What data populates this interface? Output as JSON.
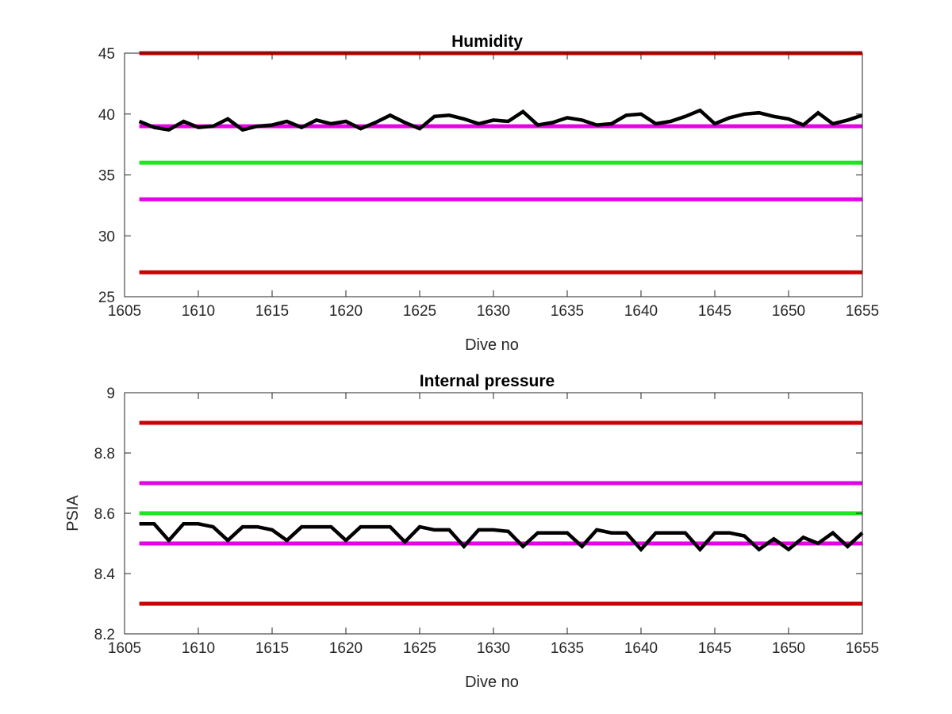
{
  "chart_data": [
    {
      "type": "line",
      "title": "Humidity",
      "xlabel": "Dive no",
      "ylabel": "",
      "xlim": [
        1605,
        1655
      ],
      "ylim": [
        25,
        45
      ],
      "xticks": [
        "1605",
        "1610",
        "1615",
        "1620",
        "1625",
        "1630",
        "1635",
        "1640",
        "1645",
        "1650",
        "1655"
      ],
      "yticks": [
        "25",
        "30",
        "35",
        "40",
        "45"
      ],
      "grid": false,
      "reference_lines": [
        {
          "y": 45,
          "color": "#cc0000"
        },
        {
          "y": 39,
          "color": "#e600e6"
        },
        {
          "y": 36,
          "color": "#1ee61e"
        },
        {
          "y": 33,
          "color": "#e600e6"
        },
        {
          "y": 27,
          "color": "#cc0000"
        }
      ],
      "series": [
        {
          "color": "#000000",
          "x": [
            1606,
            1607,
            1608,
            1609,
            1610,
            1611,
            1612,
            1613,
            1614,
            1615,
            1616,
            1617,
            1618,
            1619,
            1620,
            1621,
            1622,
            1623,
            1624,
            1625,
            1626,
            1627,
            1628,
            1629,
            1630,
            1631,
            1632,
            1633,
            1634,
            1635,
            1636,
            1637,
            1638,
            1639,
            1640,
            1641,
            1642,
            1643,
            1644,
            1645,
            1646,
            1647,
            1648,
            1649,
            1650,
            1651,
            1652,
            1653,
            1654,
            1655
          ],
          "y": [
            39.4,
            38.9,
            38.7,
            39.4,
            38.9,
            39.0,
            39.6,
            38.7,
            39.0,
            39.1,
            39.4,
            38.9,
            39.5,
            39.2,
            39.4,
            38.8,
            39.3,
            39.9,
            39.3,
            38.8,
            39.8,
            39.9,
            39.6,
            39.2,
            39.5,
            39.4,
            40.2,
            39.1,
            39.3,
            39.7,
            39.5,
            39.1,
            39.2,
            39.9,
            40.0,
            39.2,
            39.4,
            39.8,
            40.3,
            39.2,
            39.7,
            40.0,
            40.1,
            39.8,
            39.6,
            39.1,
            40.1,
            39.2,
            39.5,
            39.9
          ]
        }
      ]
    },
    {
      "type": "line",
      "title": "Internal pressure",
      "xlabel": "Dive no",
      "ylabel": "PSIA",
      "xlim": [
        1605,
        1655
      ],
      "ylim": [
        8.2,
        9.0
      ],
      "xticks": [
        "1605",
        "1610",
        "1615",
        "1620",
        "1625",
        "1630",
        "1635",
        "1640",
        "1645",
        "1650",
        "1655"
      ],
      "yticks": [
        "8.2",
        "8.4",
        "8.6",
        "8.8",
        "9"
      ],
      "grid": false,
      "reference_lines": [
        {
          "y": 8.9,
          "color": "#cc0000"
        },
        {
          "y": 8.7,
          "color": "#e600e6"
        },
        {
          "y": 8.6,
          "color": "#1ee61e"
        },
        {
          "y": 8.5,
          "color": "#e600e6"
        },
        {
          "y": 8.3,
          "color": "#cc0000"
        }
      ],
      "series": [
        {
          "color": "#000000",
          "x": [
            1606,
            1607,
            1608,
            1609,
            1610,
            1611,
            1612,
            1613,
            1614,
            1615,
            1616,
            1617,
            1618,
            1619,
            1620,
            1621,
            1622,
            1623,
            1624,
            1625,
            1626,
            1627,
            1628,
            1629,
            1630,
            1631,
            1632,
            1633,
            1634,
            1635,
            1636,
            1637,
            1638,
            1639,
            1640,
            1641,
            1642,
            1643,
            1644,
            1645,
            1646,
            1647,
            1648,
            1649,
            1650,
            1651,
            1652,
            1653,
            1654,
            1655
          ],
          "y": [
            8.565,
            8.565,
            8.51,
            8.565,
            8.565,
            8.555,
            8.51,
            8.555,
            8.555,
            8.545,
            8.51,
            8.555,
            8.555,
            8.555,
            8.51,
            8.555,
            8.555,
            8.555,
            8.505,
            8.555,
            8.545,
            8.545,
            8.49,
            8.545,
            8.545,
            8.54,
            8.49,
            8.535,
            8.535,
            8.535,
            8.49,
            8.545,
            8.535,
            8.535,
            8.48,
            8.535,
            8.535,
            8.535,
            8.48,
            8.535,
            8.535,
            8.525,
            8.48,
            8.515,
            8.48,
            8.52,
            8.5,
            8.535,
            8.49,
            8.535
          ]
        }
      ]
    }
  ]
}
